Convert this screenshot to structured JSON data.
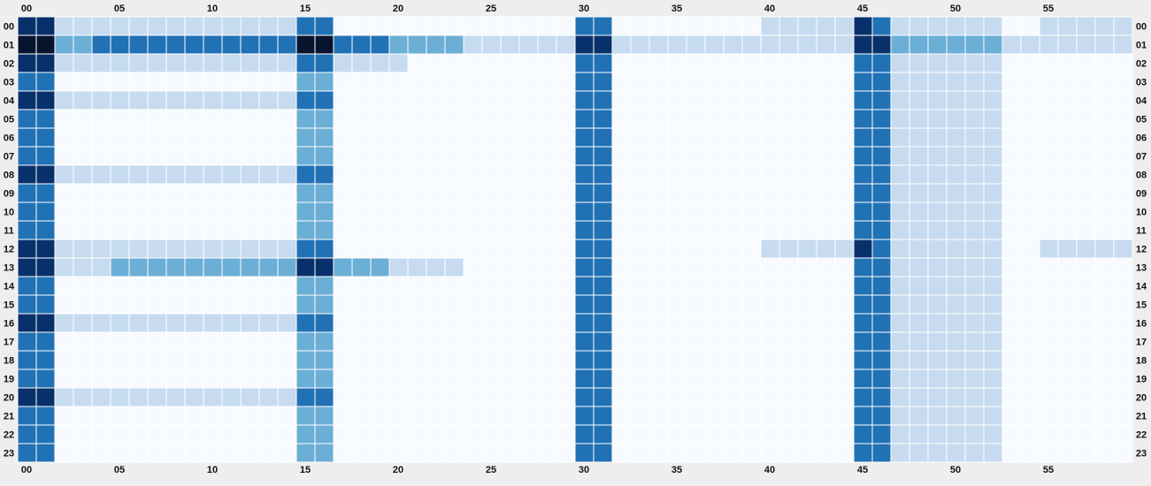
{
  "chart_data": {
    "type": "heatmap",
    "title": "",
    "xlabel": "",
    "ylabel": "",
    "x_tick_labels": [
      "00",
      "05",
      "10",
      "15",
      "20",
      "25",
      "30",
      "35",
      "40",
      "45",
      "50",
      "55"
    ],
    "y_tick_labels": [
      "00",
      "01",
      "02",
      "03",
      "04",
      "05",
      "06",
      "07",
      "08",
      "09",
      "10",
      "11",
      "12",
      "13",
      "14",
      "15",
      "16",
      "17",
      "18",
      "19",
      "20",
      "21",
      "22",
      "23"
    ],
    "columns": 60,
    "rows": 24,
    "value_range": [
      0,
      5
    ],
    "legend": "none",
    "grid": true,
    "colors": {
      "background": "#eeeeee",
      "scale": [
        "#f7fbff",
        "#c6dbef",
        "#6baed6",
        "#2171b5",
        "#08306b",
        "#08142e"
      ]
    },
    "values": [
      [
        4,
        4,
        1,
        1,
        1,
        1,
        1,
        1,
        1,
        1,
        1,
        1,
        1,
        1,
        1,
        3,
        3,
        0,
        0,
        0,
        0,
        0,
        0,
        0,
        0,
        0,
        0,
        0,
        0,
        0,
        3,
        3,
        0,
        0,
        0,
        0,
        0,
        0,
        0,
        0,
        1,
        1,
        1,
        1,
        1,
        4,
        3,
        1,
        1,
        1,
        1,
        1,
        1,
        0,
        0,
        1,
        1,
        1,
        1,
        1
      ],
      [
        5,
        5,
        2,
        2,
        3,
        3,
        3,
        3,
        3,
        3,
        3,
        3,
        3,
        3,
        3,
        5,
        5,
        3,
        3,
        3,
        2,
        2,
        2,
        2,
        1,
        1,
        1,
        1,
        1,
        1,
        4,
        4,
        1,
        1,
        1,
        1,
        1,
        1,
        1,
        1,
        1,
        1,
        1,
        1,
        1,
        4,
        4,
        2,
        2,
        2,
        2,
        2,
        2,
        1,
        1,
        1,
        1,
        1,
        1,
        1
      ],
      [
        4,
        4,
        1,
        1,
        1,
        1,
        1,
        1,
        1,
        1,
        1,
        1,
        1,
        1,
        1,
        3,
        3,
        1,
        1,
        1,
        1,
        0,
        0,
        0,
        0,
        0,
        0,
        0,
        0,
        0,
        3,
        3,
        0,
        0,
        0,
        0,
        0,
        0,
        0,
        0,
        0,
        0,
        0,
        0,
        0,
        3,
        3,
        1,
        1,
        1,
        1,
        1,
        1,
        0,
        0,
        0,
        0,
        0,
        0,
        0
      ],
      [
        3,
        3,
        0,
        0,
        0,
        0,
        0,
        0,
        0,
        0,
        0,
        0,
        0,
        0,
        0,
        2,
        2,
        0,
        0,
        0,
        0,
        0,
        0,
        0,
        0,
        0,
        0,
        0,
        0,
        0,
        3,
        3,
        0,
        0,
        0,
        0,
        0,
        0,
        0,
        0,
        0,
        0,
        0,
        0,
        0,
        3,
        3,
        1,
        1,
        1,
        1,
        1,
        1,
        0,
        0,
        0,
        0,
        0,
        0,
        0
      ],
      [
        4,
        4,
        1,
        1,
        1,
        1,
        1,
        1,
        1,
        1,
        1,
        1,
        1,
        1,
        1,
        3,
        3,
        0,
        0,
        0,
        0,
        0,
        0,
        0,
        0,
        0,
        0,
        0,
        0,
        0,
        3,
        3,
        0,
        0,
        0,
        0,
        0,
        0,
        0,
        0,
        0,
        0,
        0,
        0,
        0,
        3,
        3,
        1,
        1,
        1,
        1,
        1,
        1,
        0,
        0,
        0,
        0,
        0,
        0,
        0
      ],
      [
        3,
        3,
        0,
        0,
        0,
        0,
        0,
        0,
        0,
        0,
        0,
        0,
        0,
        0,
        0,
        2,
        2,
        0,
        0,
        0,
        0,
        0,
        0,
        0,
        0,
        0,
        0,
        0,
        0,
        0,
        3,
        3,
        0,
        0,
        0,
        0,
        0,
        0,
        0,
        0,
        0,
        0,
        0,
        0,
        0,
        3,
        3,
        1,
        1,
        1,
        1,
        1,
        1,
        0,
        0,
        0,
        0,
        0,
        0,
        0
      ],
      [
        3,
        3,
        0,
        0,
        0,
        0,
        0,
        0,
        0,
        0,
        0,
        0,
        0,
        0,
        0,
        2,
        2,
        0,
        0,
        0,
        0,
        0,
        0,
        0,
        0,
        0,
        0,
        0,
        0,
        0,
        3,
        3,
        0,
        0,
        0,
        0,
        0,
        0,
        0,
        0,
        0,
        0,
        0,
        0,
        0,
        3,
        3,
        1,
        1,
        1,
        1,
        1,
        1,
        0,
        0,
        0,
        0,
        0,
        0,
        0
      ],
      [
        3,
        3,
        0,
        0,
        0,
        0,
        0,
        0,
        0,
        0,
        0,
        0,
        0,
        0,
        0,
        2,
        2,
        0,
        0,
        0,
        0,
        0,
        0,
        0,
        0,
        0,
        0,
        0,
        0,
        0,
        3,
        3,
        0,
        0,
        0,
        0,
        0,
        0,
        0,
        0,
        0,
        0,
        0,
        0,
        0,
        3,
        3,
        1,
        1,
        1,
        1,
        1,
        1,
        0,
        0,
        0,
        0,
        0,
        0,
        0
      ],
      [
        4,
        4,
        1,
        1,
        1,
        1,
        1,
        1,
        1,
        1,
        1,
        1,
        1,
        1,
        1,
        3,
        3,
        0,
        0,
        0,
        0,
        0,
        0,
        0,
        0,
        0,
        0,
        0,
        0,
        0,
        3,
        3,
        0,
        0,
        0,
        0,
        0,
        0,
        0,
        0,
        0,
        0,
        0,
        0,
        0,
        3,
        3,
        1,
        1,
        1,
        1,
        1,
        1,
        0,
        0,
        0,
        0,
        0,
        0,
        0
      ],
      [
        3,
        3,
        0,
        0,
        0,
        0,
        0,
        0,
        0,
        0,
        0,
        0,
        0,
        0,
        0,
        2,
        2,
        0,
        0,
        0,
        0,
        0,
        0,
        0,
        0,
        0,
        0,
        0,
        0,
        0,
        3,
        3,
        0,
        0,
        0,
        0,
        0,
        0,
        0,
        0,
        0,
        0,
        0,
        0,
        0,
        3,
        3,
        1,
        1,
        1,
        1,
        1,
        1,
        0,
        0,
        0,
        0,
        0,
        0,
        0
      ],
      [
        3,
        3,
        0,
        0,
        0,
        0,
        0,
        0,
        0,
        0,
        0,
        0,
        0,
        0,
        0,
        2,
        2,
        0,
        0,
        0,
        0,
        0,
        0,
        0,
        0,
        0,
        0,
        0,
        0,
        0,
        3,
        3,
        0,
        0,
        0,
        0,
        0,
        0,
        0,
        0,
        0,
        0,
        0,
        0,
        0,
        3,
        3,
        1,
        1,
        1,
        1,
        1,
        1,
        0,
        0,
        0,
        0,
        0,
        0,
        0
      ],
      [
        3,
        3,
        0,
        0,
        0,
        0,
        0,
        0,
        0,
        0,
        0,
        0,
        0,
        0,
        0,
        2,
        2,
        0,
        0,
        0,
        0,
        0,
        0,
        0,
        0,
        0,
        0,
        0,
        0,
        0,
        3,
        3,
        0,
        0,
        0,
        0,
        0,
        0,
        0,
        0,
        0,
        0,
        0,
        0,
        0,
        3,
        3,
        1,
        1,
        1,
        1,
        1,
        1,
        0,
        0,
        0,
        0,
        0,
        0,
        0
      ],
      [
        4,
        4,
        1,
        1,
        1,
        1,
        1,
        1,
        1,
        1,
        1,
        1,
        1,
        1,
        1,
        3,
        3,
        0,
        0,
        0,
        0,
        0,
        0,
        0,
        0,
        0,
        0,
        0,
        0,
        0,
        3,
        3,
        0,
        0,
        0,
        0,
        0,
        0,
        0,
        0,
        1,
        1,
        1,
        1,
        1,
        4,
        3,
        1,
        1,
        1,
        1,
        1,
        1,
        0,
        0,
        1,
        1,
        1,
        1,
        1
      ],
      [
        4,
        4,
        1,
        1,
        1,
        2,
        2,
        2,
        2,
        2,
        2,
        2,
        2,
        2,
        2,
        4,
        4,
        2,
        2,
        2,
        1,
        1,
        1,
        1,
        0,
        0,
        0,
        0,
        0,
        0,
        3,
        3,
        0,
        0,
        0,
        0,
        0,
        0,
        0,
        0,
        0,
        0,
        0,
        0,
        0,
        3,
        3,
        1,
        1,
        1,
        1,
        1,
        1,
        0,
        0,
        0,
        0,
        0,
        0,
        0
      ],
      [
        3,
        3,
        0,
        0,
        0,
        0,
        0,
        0,
        0,
        0,
        0,
        0,
        0,
        0,
        0,
        2,
        2,
        0,
        0,
        0,
        0,
        0,
        0,
        0,
        0,
        0,
        0,
        0,
        0,
        0,
        3,
        3,
        0,
        0,
        0,
        0,
        0,
        0,
        0,
        0,
        0,
        0,
        0,
        0,
        0,
        3,
        3,
        1,
        1,
        1,
        1,
        1,
        1,
        0,
        0,
        0,
        0,
        0,
        0,
        0
      ],
      [
        3,
        3,
        0,
        0,
        0,
        0,
        0,
        0,
        0,
        0,
        0,
        0,
        0,
        0,
        0,
        2,
        2,
        0,
        0,
        0,
        0,
        0,
        0,
        0,
        0,
        0,
        0,
        0,
        0,
        0,
        3,
        3,
        0,
        0,
        0,
        0,
        0,
        0,
        0,
        0,
        0,
        0,
        0,
        0,
        0,
        3,
        3,
        1,
        1,
        1,
        1,
        1,
        1,
        0,
        0,
        0,
        0,
        0,
        0,
        0
      ],
      [
        4,
        4,
        1,
        1,
        1,
        1,
        1,
        1,
        1,
        1,
        1,
        1,
        1,
        1,
        1,
        3,
        3,
        0,
        0,
        0,
        0,
        0,
        0,
        0,
        0,
        0,
        0,
        0,
        0,
        0,
        3,
        3,
        0,
        0,
        0,
        0,
        0,
        0,
        0,
        0,
        0,
        0,
        0,
        0,
        0,
        3,
        3,
        1,
        1,
        1,
        1,
        1,
        1,
        0,
        0,
        0,
        0,
        0,
        0,
        0
      ],
      [
        3,
        3,
        0,
        0,
        0,
        0,
        0,
        0,
        0,
        0,
        0,
        0,
        0,
        0,
        0,
        2,
        2,
        0,
        0,
        0,
        0,
        0,
        0,
        0,
        0,
        0,
        0,
        0,
        0,
        0,
        3,
        3,
        0,
        0,
        0,
        0,
        0,
        0,
        0,
        0,
        0,
        0,
        0,
        0,
        0,
        3,
        3,
        1,
        1,
        1,
        1,
        1,
        1,
        0,
        0,
        0,
        0,
        0,
        0,
        0
      ],
      [
        3,
        3,
        0,
        0,
        0,
        0,
        0,
        0,
        0,
        0,
        0,
        0,
        0,
        0,
        0,
        2,
        2,
        0,
        0,
        0,
        0,
        0,
        0,
        0,
        0,
        0,
        0,
        0,
        0,
        0,
        3,
        3,
        0,
        0,
        0,
        0,
        0,
        0,
        0,
        0,
        0,
        0,
        0,
        0,
        0,
        3,
        3,
        1,
        1,
        1,
        1,
        1,
        1,
        0,
        0,
        0,
        0,
        0,
        0,
        0
      ],
      [
        3,
        3,
        0,
        0,
        0,
        0,
        0,
        0,
        0,
        0,
        0,
        0,
        0,
        0,
        0,
        2,
        2,
        0,
        0,
        0,
        0,
        0,
        0,
        0,
        0,
        0,
        0,
        0,
        0,
        0,
        3,
        3,
        0,
        0,
        0,
        0,
        0,
        0,
        0,
        0,
        0,
        0,
        0,
        0,
        0,
        3,
        3,
        1,
        1,
        1,
        1,
        1,
        1,
        0,
        0,
        0,
        0,
        0,
        0,
        0
      ],
      [
        4,
        4,
        1,
        1,
        1,
        1,
        1,
        1,
        1,
        1,
        1,
        1,
        1,
        1,
        1,
        3,
        3,
        0,
        0,
        0,
        0,
        0,
        0,
        0,
        0,
        0,
        0,
        0,
        0,
        0,
        3,
        3,
        0,
        0,
        0,
        0,
        0,
        0,
        0,
        0,
        0,
        0,
        0,
        0,
        0,
        3,
        3,
        1,
        1,
        1,
        1,
        1,
        1,
        0,
        0,
        0,
        0,
        0,
        0,
        0
      ],
      [
        3,
        3,
        0,
        0,
        0,
        0,
        0,
        0,
        0,
        0,
        0,
        0,
        0,
        0,
        0,
        2,
        2,
        0,
        0,
        0,
        0,
        0,
        0,
        0,
        0,
        0,
        0,
        0,
        0,
        0,
        3,
        3,
        0,
        0,
        0,
        0,
        0,
        0,
        0,
        0,
        0,
        0,
        0,
        0,
        0,
        3,
        3,
        1,
        1,
        1,
        1,
        1,
        1,
        0,
        0,
        0,
        0,
        0,
        0,
        0
      ],
      [
        3,
        3,
        0,
        0,
        0,
        0,
        0,
        0,
        0,
        0,
        0,
        0,
        0,
        0,
        0,
        2,
        2,
        0,
        0,
        0,
        0,
        0,
        0,
        0,
        0,
        0,
        0,
        0,
        0,
        0,
        3,
        3,
        0,
        0,
        0,
        0,
        0,
        0,
        0,
        0,
        0,
        0,
        0,
        0,
        0,
        3,
        3,
        1,
        1,
        1,
        1,
        1,
        1,
        0,
        0,
        0,
        0,
        0,
        0,
        0
      ],
      [
        3,
        3,
        0,
        0,
        0,
        0,
        0,
        0,
        0,
        0,
        0,
        0,
        0,
        0,
        0,
        2,
        2,
        0,
        0,
        0,
        0,
        0,
        0,
        0,
        0,
        0,
        0,
        0,
        0,
        0,
        3,
        3,
        0,
        0,
        0,
        0,
        0,
        0,
        0,
        0,
        0,
        0,
        0,
        0,
        0,
        3,
        3,
        1,
        1,
        1,
        1,
        1,
        1,
        0,
        0,
        0,
        0,
        0,
        0,
        0
      ]
    ]
  }
}
